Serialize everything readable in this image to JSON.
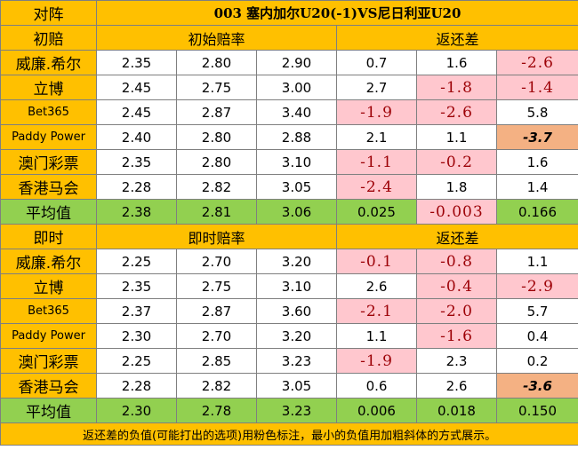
{
  "title_row": {
    "label": "对阵",
    "match": "003 塞内加尔U20(-1)VS尼日利亚U20"
  },
  "sections": [
    {
      "label": "初赔",
      "odds_header": "初始赔率",
      "return_header": "返还差",
      "rows": [
        {
          "company": "威廉.希尔",
          "o1": "2.35",
          "o2": "2.80",
          "o3": "2.90",
          "r1": "0.7",
          "r2": "1.6",
          "r3": "-2.6"
        },
        {
          "company": "立博",
          "o1": "2.45",
          "o2": "2.75",
          "o3": "3.00",
          "r1": "2.7",
          "r2": "-1.8",
          "r3": "-1.4"
        },
        {
          "company": "Bet365",
          "o1": "2.45",
          "o2": "2.87",
          "o3": "3.40",
          "r1": "-1.9",
          "r2": "-2.6",
          "r3": "5.8"
        },
        {
          "company": "Paddy Power",
          "o1": "2.40",
          "o2": "2.80",
          "o3": "2.88",
          "r1": "2.1",
          "r2": "1.1",
          "r3": "-3.7"
        },
        {
          "company": "澳门彩票",
          "o1": "2.35",
          "o2": "2.80",
          "o3": "3.10",
          "r1": "-1.1",
          "r2": "-0.2",
          "r3": "1.6"
        },
        {
          "company": "香港马会",
          "o1": "2.28",
          "o2": "2.82",
          "o3": "3.05",
          "r1": "-2.4",
          "r2": "1.8",
          "r3": "1.4"
        }
      ],
      "avg": {
        "label": "平均值",
        "o1": "2.38",
        "o2": "2.81",
        "o3": "3.06",
        "r1": "0.025",
        "r2": "-0.003",
        "r3": "0.166"
      }
    },
    {
      "label": "即时",
      "odds_header": "即时赔率",
      "return_header": "返还差",
      "rows": [
        {
          "company": "威廉.希尔",
          "o1": "2.25",
          "o2": "2.70",
          "o3": "3.20",
          "r1": "-0.1",
          "r2": "-0.8",
          "r3": "1.1"
        },
        {
          "company": "立博",
          "o1": "2.35",
          "o2": "2.75",
          "o3": "3.10",
          "r1": "2.6",
          "r2": "-0.4",
          "r3": "-2.9"
        },
        {
          "company": "Bet365",
          "o1": "2.37",
          "o2": "2.87",
          "o3": "3.60",
          "r1": "-2.1",
          "r2": "-2.0",
          "r3": "5.7"
        },
        {
          "company": "Paddy Power",
          "o1": "2.30",
          "o2": "2.70",
          "o3": "3.20",
          "r1": "1.1",
          "r2": "-1.6",
          "r3": "0.4"
        },
        {
          "company": "澳门彩票",
          "o1": "2.25",
          "o2": "2.85",
          "o3": "3.23",
          "r1": "-1.9",
          "r2": "2.3",
          "r3": "0.2"
        },
        {
          "company": "香港马会",
          "o1": "2.28",
          "o2": "2.82",
          "o3": "3.05",
          "r1": "0.6",
          "r2": "2.6",
          "r3": "-3.6"
        }
      ],
      "avg": {
        "label": "平均值",
        "o1": "2.30",
        "o2": "2.78",
        "o3": "3.23",
        "r1": "0.006",
        "r2": "0.018",
        "r3": "0.150"
      }
    }
  ],
  "note": "返还差的负值(可能打出的选项)用粉色标注，最小的负值用加粗斜体的方式展示。",
  "colors": {
    "header": "#ffc000",
    "negative_fill": "#ffc7ce",
    "negative_text": "#9c0006",
    "min_fill": "#f4b183",
    "average": "#92d050",
    "grid": "#7f7f7f"
  }
}
